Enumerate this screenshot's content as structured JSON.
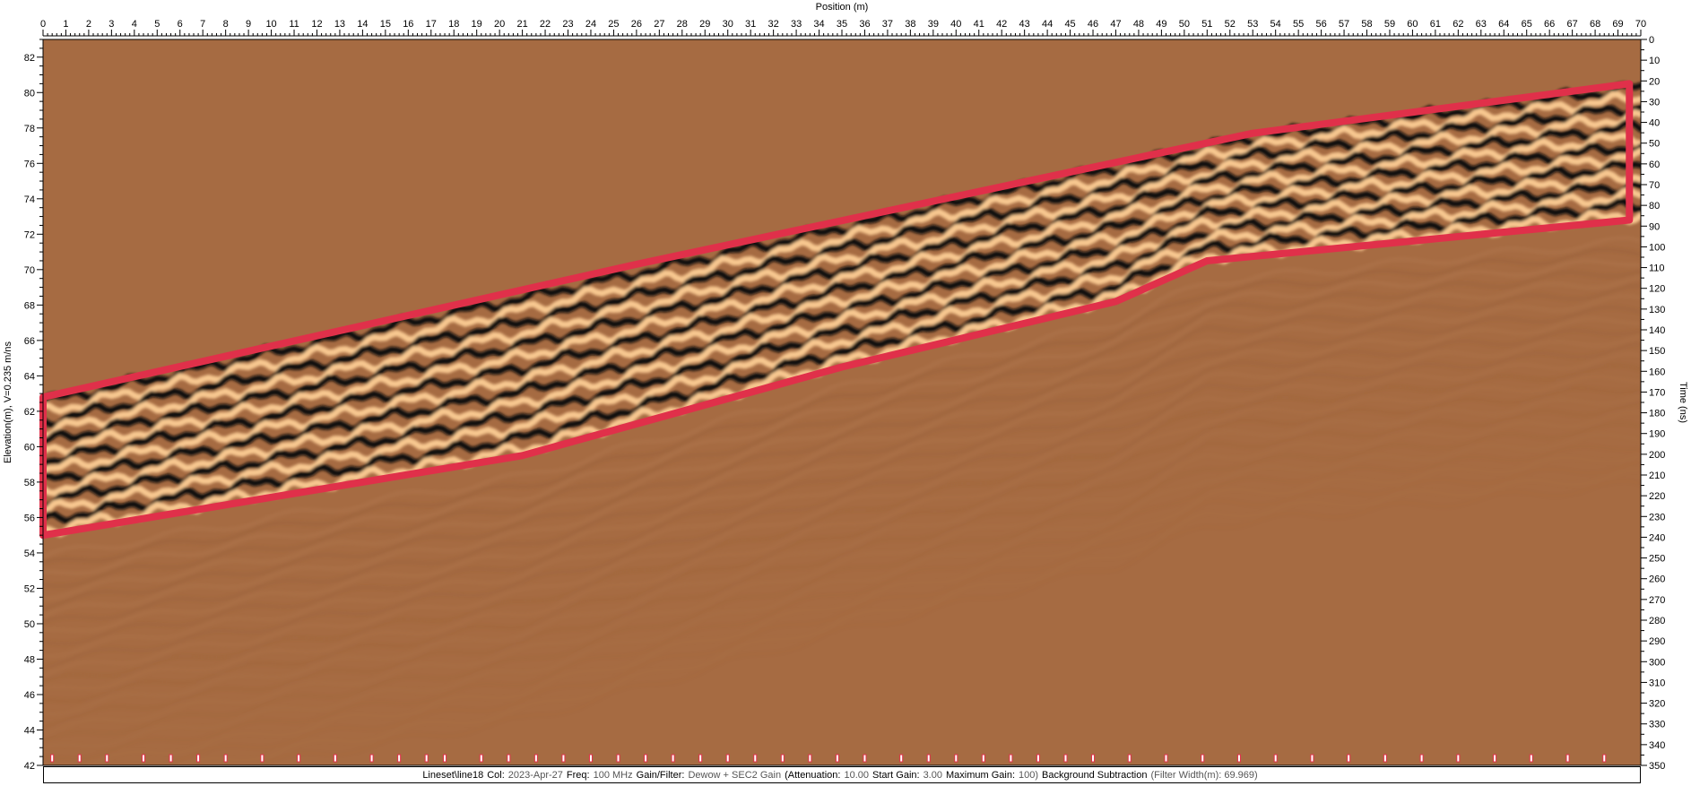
{
  "chart_data": {
    "type": "heatmap",
    "x_axis": {
      "label": "Position (m)",
      "range": [
        0,
        70
      ],
      "ticks": [
        0,
        1,
        2,
        3,
        4,
        5,
        6,
        7,
        8,
        9,
        10,
        11,
        12,
        13,
        14,
        15,
        16,
        17,
        18,
        19,
        20,
        21,
        22,
        23,
        24,
        25,
        26,
        27,
        28,
        29,
        30,
        31,
        32,
        33,
        34,
        35,
        36,
        37,
        38,
        39,
        40,
        41,
        42,
        43,
        44,
        45,
        46,
        47,
        48,
        49,
        50,
        51,
        52,
        53,
        54,
        55,
        56,
        57,
        58,
        59,
        60,
        61,
        62,
        63,
        64,
        65,
        66,
        67,
        68,
        69,
        70
      ]
    },
    "y_left_axis": {
      "label": "Elevation(m), V=0.235 m/ns",
      "range": [
        42,
        83
      ],
      "ticks": [
        42,
        44,
        46,
        48,
        50,
        52,
        54,
        56,
        58,
        60,
        62,
        64,
        66,
        68,
        70,
        72,
        74,
        76,
        78,
        80,
        82
      ]
    },
    "y_right_axis": {
      "label": "Time (ns)",
      "range": [
        0,
        350
      ],
      "ticks": [
        0,
        10,
        20,
        30,
        40,
        50,
        60,
        70,
        80,
        90,
        100,
        110,
        120,
        130,
        140,
        150,
        160,
        170,
        180,
        190,
        200,
        210,
        220,
        230,
        240,
        250,
        260,
        270,
        280,
        290,
        300,
        310,
        320,
        330,
        340,
        350
      ]
    },
    "colors": {
      "background": "#a66b42",
      "positive": "#f8c890",
      "negative": "#0a0a0a",
      "highlight": "#e0304a"
    },
    "reflector_band": {
      "top_edge": [
        [
          0,
          62.8
        ],
        [
          53,
          77.7
        ],
        [
          69.5,
          80.5
        ]
      ],
      "bottom_edge": [
        [
          0,
          55.0
        ],
        [
          21,
          59.5
        ],
        [
          35,
          64.5
        ],
        [
          47,
          68.2
        ],
        [
          51,
          70.5
        ],
        [
          69.5,
          72.8
        ]
      ]
    },
    "highlight_polygon": [
      [
        0,
        62.8
      ],
      [
        26,
        70.3
      ],
      [
        53,
        77.7
      ],
      [
        69.5,
        80.5
      ],
      [
        69.5,
        72.8
      ],
      [
        51,
        70.5
      ],
      [
        47,
        68.2
      ],
      [
        35,
        64.5
      ],
      [
        21,
        59.5
      ],
      [
        0,
        55.0
      ]
    ],
    "trace_markers": [
      0.4,
      1.6,
      2.8,
      4.4,
      5.6,
      6.8,
      8.0,
      9.6,
      11.2,
      12.8,
      14.4,
      15.6,
      16.8,
      17.6,
      19.2,
      20.4,
      21.6,
      22.8,
      24.0,
      25.2,
      26.4,
      27.6,
      28.8,
      30.0,
      31.2,
      32.4,
      33.6,
      34.8,
      36.0,
      37.6,
      38.8,
      40.0,
      41.2,
      42.4,
      43.6,
      44.8,
      46.0,
      47.6,
      49.2,
      50.8,
      52.4,
      54.0,
      55.6,
      57.2,
      58.8,
      60.4,
      62.0,
      63.6,
      65.2,
      66.8,
      68.4
    ]
  },
  "info_bar": {
    "file_value": "Lineset\\line18",
    "col_label": "Col:",
    "col_value": "2023-Apr-27",
    "freq_label": "Freq:",
    "freq_value": "100 MHz",
    "gain_label": "Gain/Filter:",
    "gain_value": "Dewow + SEC2 Gain",
    "atten_label": "(Attenuation:",
    "atten_value": "10.00",
    "start_label": "Start Gain:",
    "start_value": "3.00",
    "max_label": "Maximum Gain:",
    "max_value": "100)",
    "bgsub_label": "Background Subtraction",
    "filter_value": "(Filter Width(m): 69.969)"
  }
}
